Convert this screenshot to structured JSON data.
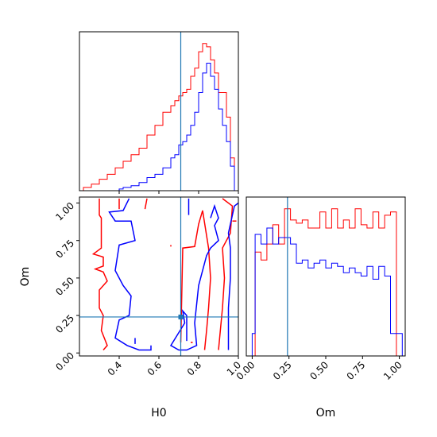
{
  "chart_data": [
    {
      "type": "histogram",
      "panel": "H0-marginal",
      "x_variable": "H0",
      "xlim": [
        0.2,
        1.0
      ],
      "y_ticks_visible": false,
      "bins": [
        0.2,
        0.22,
        0.24,
        0.26,
        0.28,
        0.3,
        0.32,
        0.34,
        0.36,
        0.38,
        0.4,
        0.42,
        0.44,
        0.46,
        0.48,
        0.5,
        0.52,
        0.54,
        0.56,
        0.58,
        0.6,
        0.62,
        0.64,
        0.66,
        0.68,
        0.7,
        0.72,
        0.74,
        0.76,
        0.78,
        0.8,
        0.82,
        0.84,
        0.86,
        0.88,
        0.9,
        0.92,
        0.94,
        0.96,
        0.98,
        1.0
      ],
      "series": [
        {
          "name": "red",
          "color": "#ff0000",
          "values": [
            0,
            2,
            2,
            4,
            4,
            7,
            7,
            10,
            10,
            14,
            14,
            18,
            18,
            22,
            22,
            26,
            26,
            34,
            34,
            40,
            40,
            48,
            48,
            52,
            55,
            58,
            60,
            62,
            70,
            75,
            85,
            90,
            88,
            80,
            72,
            60,
            60,
            45,
            20,
            0
          ]
        },
        {
          "name": "blue",
          "color": "#0000ff",
          "values": [
            0,
            0,
            0,
            0,
            0,
            0,
            0,
            0,
            0,
            0,
            1,
            2,
            2,
            3,
            3,
            5,
            5,
            8,
            8,
            10,
            10,
            14,
            14,
            20,
            22,
            28,
            30,
            34,
            40,
            48,
            60,
            72,
            78,
            70,
            62,
            50,
            40,
            30,
            15,
            0
          ]
        }
      ],
      "truth": 0.71,
      "truth_color": "#1f77b4"
    },
    {
      "type": "contour",
      "panel": "H0-Om-joint",
      "x_variable": "H0",
      "y_variable": "Om",
      "xlim": [
        0.2,
        1.0
      ],
      "ylim": [
        -0.02,
        1.04
      ],
      "truth": [
        0.71,
        0.24
      ],
      "truth_color": "#1f77b4",
      "series": [
        {
          "name": "red",
          "color": "#ff0000",
          "contours": [
            [
              [
                0.3,
                1.03
              ],
              [
                0.3,
                0.92
              ],
              [
                0.31,
                0.9
              ],
              [
                0.31,
                0.7
              ],
              [
                0.27,
                0.66
              ],
              [
                0.32,
                0.64
              ],
              [
                0.32,
                0.58
              ],
              [
                0.28,
                0.56
              ],
              [
                0.32,
                0.54
              ],
              [
                0.34,
                0.48
              ],
              [
                0.3,
                0.42
              ],
              [
                0.3,
                0.3
              ],
              [
                0.32,
                0.25
              ],
              [
                0.31,
                0.15
              ],
              [
                0.34,
                0.05
              ],
              [
                0.32,
                0.02
              ]
            ],
            [
              [
                0.4,
                1.03
              ],
              [
                0.4,
                0.96
              ]
            ],
            [
              [
                0.54,
                1.03
              ],
              [
                0.53,
                0.96
              ]
            ],
            [
              [
                0.66,
                0.72
              ],
              [
                0.66,
                0.71
              ]
            ],
            [
              [
                0.71,
                0.07
              ],
              [
                0.72,
                0.7
              ],
              [
                0.78,
                0.71
              ],
              [
                0.8,
                0.86
              ],
              [
                0.82,
                0.95
              ],
              [
                0.85,
                0.7
              ],
              [
                0.86,
                0.5
              ],
              [
                0.85,
                0.3
              ],
              [
                0.84,
                0.15
              ],
              [
                0.83,
                0.02
              ]
            ],
            [
              [
                0.76,
                0.07
              ],
              [
                0.77,
                0.07
              ]
            ],
            [
              [
                0.9,
                0.02
              ],
              [
                0.92,
                0.3
              ],
              [
                0.93,
                0.5
              ],
              [
                0.92,
                0.7
              ],
              [
                0.96,
                0.8
              ],
              [
                0.97,
                0.98
              ],
              [
                0.92,
                1.03
              ]
            ],
            [
              [
                0.97,
                0.88
              ],
              [
                0.99,
                0.88
              ]
            ]
          ]
        },
        {
          "name": "blue",
          "color": "#0000ff",
          "contours": [
            [
              [
                0.45,
                1.03
              ],
              [
                0.42,
                0.95
              ],
              [
                0.35,
                0.94
              ],
              [
                0.38,
                0.88
              ],
              [
                0.46,
                0.88
              ],
              [
                0.48,
                0.75
              ],
              [
                0.4,
                0.72
              ],
              [
                0.38,
                0.55
              ],
              [
                0.42,
                0.45
              ],
              [
                0.46,
                0.38
              ],
              [
                0.45,
                0.25
              ],
              [
                0.4,
                0.22
              ],
              [
                0.38,
                0.1
              ],
              [
                0.44,
                0.05
              ],
              [
                0.5,
                0.02
              ],
              [
                0.56,
                0.02
              ],
              [
                0.56,
                0.05
              ]
            ],
            [
              [
                0.48,
                0.1
              ],
              [
                0.48,
                0.06
              ]
            ],
            [
              [
                0.75,
                1.03
              ],
              [
                0.75,
                0.92
              ]
            ],
            [
              [
                0.74,
                0.08
              ],
              [
                0.74,
                0.25
              ],
              [
                0.72,
                0.28
              ],
              [
                0.73,
                0.2
              ],
              [
                0.66,
                0.05
              ],
              [
                0.7,
                0.02
              ],
              [
                0.74,
                0.02
              ],
              [
                0.79,
                0.05
              ],
              [
                0.78,
                0.2
              ],
              [
                0.8,
                0.45
              ],
              [
                0.84,
                0.65
              ],
              [
                0.86,
                0.7
              ],
              [
                0.9,
                0.75
              ],
              [
                0.88,
                0.85
              ],
              [
                0.9,
                0.9
              ],
              [
                0.88,
                0.98
              ],
              [
                0.86,
                0.9
              ]
            ],
            [
              [
                0.95,
                0.02
              ],
              [
                0.95,
                0.3
              ],
              [
                0.96,
                0.5
              ],
              [
                0.96,
                0.7
              ],
              [
                0.95,
                0.8
              ],
              [
                0.98,
                0.98
              ],
              [
                1.0,
                1.0
              ]
            ]
          ]
        }
      ]
    },
    {
      "type": "histogram",
      "panel": "Om-marginal",
      "x_variable": "Om",
      "xlim": [
        -0.04,
        1.04
      ],
      "y_ticks_visible": false,
      "bins": [
        -0.02,
        0.0,
        0.02,
        0.04,
        0.06,
        0.08,
        0.1,
        0.12,
        0.14,
        0.16,
        0.18,
        0.2,
        0.22,
        0.24,
        0.26,
        0.28,
        0.3,
        0.32,
        0.34,
        0.36,
        0.38,
        0.4,
        0.42,
        0.44,
        0.46,
        0.48,
        0.5,
        0.52,
        0.54,
        0.56,
        0.58,
        0.6,
        0.62,
        0.64,
        0.66,
        0.68,
        0.7,
        0.72,
        0.74,
        0.76,
        0.78,
        0.8,
        0.82,
        0.84,
        0.86,
        0.88,
        0.9,
        0.92,
        0.94,
        0.96,
        0.98,
        1.0,
        1.02
      ],
      "series": [
        {
          "name": "red",
          "color": "#ff0000",
          "values": [
            0,
            0,
            65,
            65,
            60,
            60,
            70,
            70,
            82,
            82,
            70,
            70,
            92,
            92,
            85,
            85,
            83,
            83,
            85,
            85,
            80,
            80,
            80,
            80,
            90,
            90,
            80,
            80,
            92,
            92,
            80,
            80,
            85,
            85,
            80,
            80,
            92,
            92,
            82,
            82,
            80,
            80,
            90,
            90,
            80,
            80,
            88,
            88,
            90,
            90,
            0,
            0
          ]
        },
        {
          "name": "blue",
          "color": "#0000ff",
          "values": [
            0,
            14,
            76,
            76,
            70,
            70,
            80,
            80,
            70,
            70,
            74,
            74,
            74,
            74,
            70,
            70,
            58,
            58,
            60,
            60,
            55,
            55,
            58,
            58,
            60,
            60,
            55,
            55,
            58,
            58,
            56,
            56,
            52,
            52,
            55,
            55,
            52,
            52,
            50,
            50,
            56,
            56,
            48,
            48,
            56,
            56,
            50,
            50,
            14,
            14,
            14,
            14
          ]
        }
      ],
      "truth": 0.24,
      "truth_color": "#1f77b4"
    }
  ],
  "axes": {
    "joint_x_ticks": [
      "0.4",
      "0.6",
      "0.8",
      "1.0"
    ],
    "joint_y_ticks": [
      "0.00",
      "0.25",
      "0.50",
      "0.75",
      "1.00"
    ],
    "om_x_ticks": [
      "0.00",
      "0.25",
      "0.50",
      "0.75",
      "1.00"
    ],
    "xlabel_joint": "H0",
    "ylabel_joint": "Om",
    "xlabel_om": "Om"
  }
}
